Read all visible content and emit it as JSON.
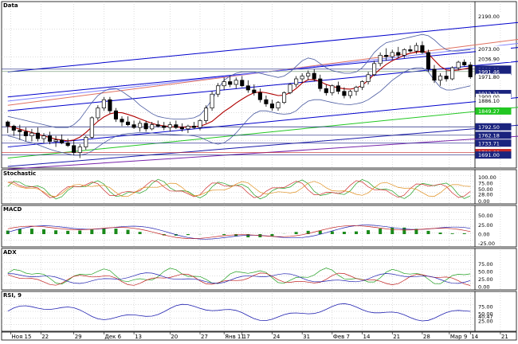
{
  "chart_data": {
    "type": "candlestick",
    "panels": [
      {
        "title": "Data",
        "ylim": [
          1650,
          2220
        ],
        "price_ticks": [
          "2190.00",
          "2073.00",
          "2036.90",
          "2000.00",
          "1991.46",
          "1971.80",
          "1912.21",
          "1900.00",
          "1886.10",
          "1849.27",
          "1792.50",
          "1762.18",
          "1733.71",
          "1700.00",
          "1691.00"
        ],
        "tag_colors": [
          "#ffffff",
          "#ffffff",
          "#ffffff",
          "#1a237e",
          "#1a237e",
          "#ffffff",
          "#1a237e",
          "#ffffff",
          "#ffffff",
          "#22c722",
          "#1a237e",
          "#1a237e",
          "#1a237e",
          "#c62828",
          "#1a237e"
        ],
        "tag_values": [
          2190,
          2073,
          2036.9,
          2000,
          1991.46,
          1971.8,
          1912.21,
          1900,
          1886.1,
          1849.27,
          1792.5,
          1762.18,
          1733.71,
          1700,
          1691
        ]
      },
      {
        "title": "Stochastic",
        "ylim": [
          -5,
          105
        ],
        "ticks": [
          "100.00",
          "75.00",
          "50.00",
          "28.00",
          "0.00"
        ],
        "tick_values": [
          100,
          75,
          50,
          28,
          0
        ]
      },
      {
        "title": "MACD",
        "ylim": [
          -30,
          60
        ],
        "ticks": [
          "50.00",
          "25.00",
          "0.00",
          "-25.00"
        ],
        "tick_values": [
          50,
          25,
          0,
          -25
        ]
      },
      {
        "title": "ADX",
        "ylim": [
          -5,
          105
        ],
        "ticks": [
          "75.00",
          "50.00",
          "25.00",
          "0.00"
        ],
        "tick_values": [
          75,
          50,
          25,
          0
        ]
      },
      {
        "title": "RSI, 9",
        "ylim": [
          -5,
          105
        ],
        "ticks": [
          "75.00",
          "50.00",
          "40.47",
          "25.00"
        ],
        "tick_values": [
          75,
          50,
          40.47,
          25
        ]
      }
    ],
    "x_ticks": [
      "Ноя 15",
      "22",
      "29",
      "Дек 6",
      "13",
      "20",
      "27",
      "Янв 11",
      "17",
      "24",
      "31",
      "Фев 7",
      "14",
      "21",
      "28",
      "Мар 9",
      "14",
      "21"
    ],
    "x_tick_pos": [
      0.5,
      5.5,
      11,
      16,
      21,
      27,
      32,
      36,
      39,
      44,
      49,
      54,
      59,
      64,
      69,
      73.5,
      77,
      82
    ],
    "candles": [
      [
        1810,
        1815,
        1770,
        1795
      ],
      [
        1795,
        1800,
        1760,
        1780
      ],
      [
        1780,
        1800,
        1745,
        1775
      ],
      [
        1775,
        1790,
        1740,
        1760
      ],
      [
        1760,
        1785,
        1740,
        1770
      ],
      [
        1770,
        1790,
        1740,
        1750
      ],
      [
        1750,
        1770,
        1735,
        1760
      ],
      [
        1760,
        1775,
        1730,
        1740
      ],
      [
        1740,
        1760,
        1720,
        1745
      ],
      [
        1745,
        1765,
        1730,
        1735
      ],
      [
        1735,
        1750,
        1720,
        1725
      ],
      [
        1725,
        1745,
        1690,
        1700
      ],
      [
        1700,
        1730,
        1680,
        1720
      ],
      [
        1720,
        1760,
        1710,
        1755
      ],
      [
        1755,
        1830,
        1750,
        1825
      ],
      [
        1825,
        1870,
        1815,
        1860
      ],
      [
        1860,
        1900,
        1850,
        1890
      ],
      [
        1890,
        1900,
        1840,
        1850
      ],
      [
        1850,
        1860,
        1810,
        1820
      ],
      [
        1820,
        1830,
        1795,
        1810
      ],
      [
        1810,
        1830,
        1795,
        1800
      ],
      [
        1800,
        1815,
        1785,
        1790
      ],
      [
        1790,
        1815,
        1775,
        1805
      ],
      [
        1805,
        1815,
        1775,
        1785
      ],
      [
        1785,
        1810,
        1780,
        1800
      ],
      [
        1800,
        1815,
        1790,
        1795
      ],
      [
        1795,
        1810,
        1780,
        1790
      ],
      [
        1790,
        1810,
        1775,
        1800
      ],
      [
        1800,
        1815,
        1785,
        1790
      ],
      [
        1790,
        1805,
        1775,
        1785
      ],
      [
        1785,
        1800,
        1770,
        1795
      ],
      [
        1795,
        1810,
        1785,
        1790
      ],
      [
        1790,
        1820,
        1780,
        1815
      ],
      [
        1815,
        1870,
        1805,
        1860
      ],
      [
        1860,
        1920,
        1850,
        1910
      ],
      [
        1910,
        1950,
        1900,
        1940
      ],
      [
        1940,
        1970,
        1925,
        1955
      ],
      [
        1955,
        1975,
        1935,
        1945
      ],
      [
        1945,
        1970,
        1930,
        1960
      ],
      [
        1960,
        1975,
        1935,
        1940
      ],
      [
        1940,
        1960,
        1915,
        1925
      ],
      [
        1925,
        1945,
        1905,
        1915
      ],
      [
        1915,
        1930,
        1880,
        1890
      ],
      [
        1890,
        1905,
        1865,
        1875
      ],
      [
        1875,
        1890,
        1850,
        1860
      ],
      [
        1860,
        1885,
        1850,
        1880
      ],
      [
        1880,
        1920,
        1875,
        1915
      ],
      [
        1915,
        1950,
        1910,
        1945
      ],
      [
        1945,
        1975,
        1935,
        1965
      ],
      [
        1965,
        1985,
        1950,
        1975
      ],
      [
        1975,
        1995,
        1960,
        1985
      ],
      [
        1985,
        2000,
        1955,
        1965
      ],
      [
        1965,
        1980,
        1920,
        1930
      ],
      [
        1930,
        1945,
        1905,
        1915
      ],
      [
        1915,
        1945,
        1905,
        1940
      ],
      [
        1940,
        1955,
        1910,
        1920
      ],
      [
        1920,
        1935,
        1895,
        1905
      ],
      [
        1905,
        1925,
        1895,
        1920
      ],
      [
        1920,
        1940,
        1905,
        1935
      ],
      [
        1935,
        1960,
        1925,
        1955
      ],
      [
        1955,
        1990,
        1945,
        1980
      ],
      [
        1980,
        2030,
        1975,
        2020
      ],
      [
        2020,
        2060,
        2010,
        2050
      ],
      [
        2050,
        2075,
        2030,
        2045
      ],
      [
        2045,
        2070,
        2035,
        2060
      ],
      [
        2060,
        2080,
        2040,
        2050
      ],
      [
        2050,
        2075,
        2040,
        2070
      ],
      [
        2070,
        2085,
        2060,
        2065
      ],
      [
        2065,
        2095,
        2055,
        2085
      ],
      [
        2085,
        2100,
        2055,
        2060
      ],
      [
        2060,
        2070,
        1990,
        2000
      ],
      [
        2000,
        2015,
        1950,
        1960
      ],
      [
        1960,
        1985,
        1940,
        1975
      ],
      [
        1975,
        1995,
        1955,
        1965
      ],
      [
        1965,
        2010,
        1960,
        2005
      ],
      [
        2005,
        2030,
        1995,
        2025
      ],
      [
        2025,
        2035,
        2010,
        2015
      ],
      [
        2015,
        2025,
        1965,
        1972
      ]
    ],
    "bands": {
      "upper": [
        1830,
        1825,
        1820,
        1815,
        1810,
        1805,
        1800,
        1795,
        1790,
        1790,
        1790,
        1800,
        1820,
        1850,
        1880,
        1905,
        1920,
        1930,
        1930,
        1920,
        1905,
        1890,
        1870,
        1855,
        1840,
        1830,
        1825,
        1822,
        1820,
        1820,
        1822,
        1825,
        1835,
        1860,
        1890,
        1930,
        1960,
        1975,
        1985,
        1990,
        1990,
        1990,
        1985,
        1980,
        1975,
        1970,
        1975,
        1990,
        2010,
        2030,
        2040,
        2035,
        2020,
        2005,
        1995,
        1990,
        1985,
        1985,
        1990,
        2005,
        2030,
        2060,
        2080,
        2095,
        2100,
        2105,
        2110,
        2115,
        2120,
        2125,
        2120,
        2105,
        2085,
        2070,
        2065,
        2065,
        2068,
        2070
      ],
      "lower": [
        1760,
        1755,
        1748,
        1740,
        1735,
        1728,
        1720,
        1712,
        1705,
        1700,
        1695,
        1690,
        1690,
        1695,
        1705,
        1720,
        1735,
        1748,
        1758,
        1765,
        1768,
        1770,
        1772,
        1772,
        1770,
        1768,
        1766,
        1765,
        1764,
        1763,
        1762,
        1760,
        1755,
        1745,
        1735,
        1730,
        1735,
        1750,
        1770,
        1795,
        1820,
        1840,
        1850,
        1850,
        1845,
        1840,
        1838,
        1840,
        1850,
        1870,
        1885,
        1890,
        1890,
        1885,
        1880,
        1876,
        1873,
        1872,
        1875,
        1880,
        1890,
        1905,
        1920,
        1940,
        1960,
        1975,
        1990,
        2000,
        2005,
        2005,
        1990,
        1960,
        1935,
        1925,
        1925,
        1930,
        1935,
        1940
      ],
      "mid": [
        1795,
        1790,
        1784,
        1778,
        1772,
        1766,
        1760,
        1754,
        1748,
        1745,
        1742,
        1745,
        1755,
        1772,
        1792,
        1812,
        1828,
        1839,
        1844,
        1843,
        1837,
        1830,
        1821,
        1813,
        1805,
        1799,
        1796,
        1793,
        1792,
        1791,
        1792,
        1793,
        1795,
        1802,
        1812,
        1830,
        1848,
        1862,
        1878,
        1892,
        1905,
        1915,
        1918,
        1915,
        1910,
        1905,
        1906,
        1915,
        1930,
        1950,
        1962,
        1962,
        1955,
        1945,
        1938,
        1933,
        1929,
        1928,
        1932,
        1942,
        1960,
        1982,
        2000,
        2017,
        2030,
        2040,
        2050,
        2057,
        2062,
        2065,
        2055,
        2032,
        2010,
        1997,
        1995,
        1997,
        2001,
        2005
      ]
    },
    "trend_lines": [
      {
        "color": "#0000cc",
        "from": [
          0,
          1990
        ],
        "to": [
          86,
          2170
        ]
      },
      {
        "color": "#0000cc",
        "from": [
          0,
          1900
        ],
        "to": [
          86,
          2080
        ]
      },
      {
        "color": "#0000cc",
        "from": [
          0,
          1850
        ],
        "to": [
          86,
          2030
        ]
      },
      {
        "color": "#0000cc",
        "from": [
          0,
          1720
        ],
        "to": [
          86,
          1900
        ]
      },
      {
        "color": "#e07060",
        "from": [
          0,
          1870
        ],
        "to": [
          86,
          2110
        ]
      },
      {
        "color": "#8080ff",
        "from": [
          0,
          1885
        ],
        "to": [
          86,
          2095
        ]
      },
      {
        "color": "#22c722",
        "from": [
          0,
          1680
        ],
        "to": [
          86,
          1865
        ]
      },
      {
        "color": "#1a1aaa",
        "from": [
          0,
          1650
        ],
        "to": [
          86,
          1800
        ]
      },
      {
        "color": "#7722aa",
        "from": [
          0,
          1640
        ],
        "to": [
          86,
          1760
        ]
      }
    ],
    "hlines": [
      {
        "value": 2000,
        "color": "#1a237e"
      },
      {
        "value": 1991.46,
        "color": "#6a8f6a"
      },
      {
        "value": 1792.5,
        "color": "#1a237e"
      },
      {
        "value": 1762.18,
        "color": "#1a237e"
      },
      {
        "value": 1733.71,
        "color": "#3a3a9a"
      },
      {
        "value": 1700,
        "color": "#c62828"
      },
      {
        "value": 1691,
        "color": "#1a237e"
      }
    ]
  }
}
